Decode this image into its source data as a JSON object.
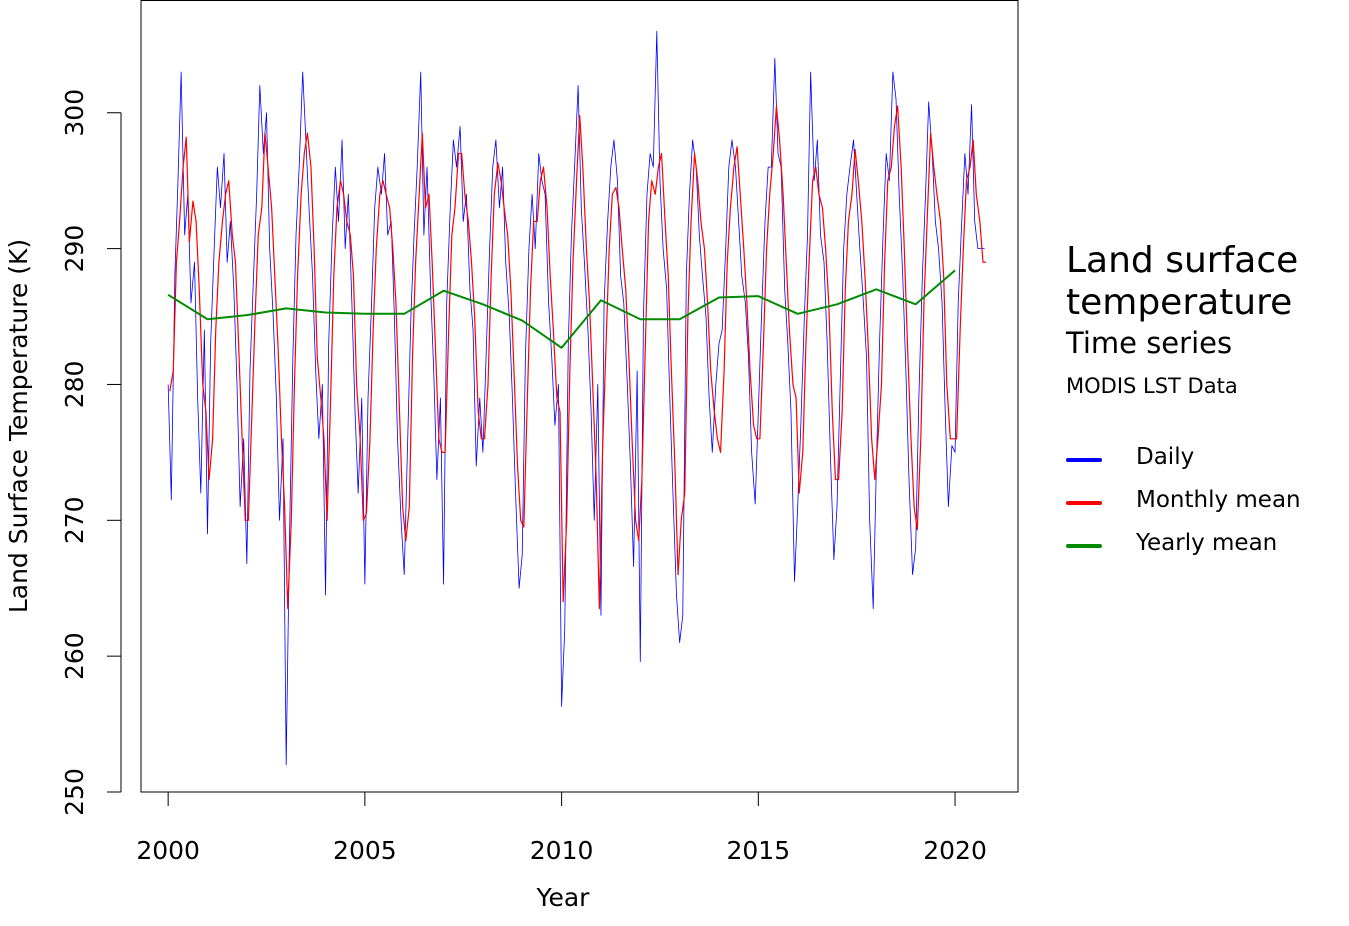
{
  "chart_data": {
    "type": "line",
    "x_label": "Year",
    "y_label": "Land Surface Temperature (K)",
    "legend_title": "Land surface temperature",
    "legend_subtitle": "Time series",
    "legend_note": "MODIS LST Data",
    "xlim": [
      1999.31,
      2021.6
    ],
    "ylim": [
      250,
      308.3
    ],
    "xticks": [
      2000,
      2005,
      2010,
      2015,
      2020
    ],
    "yticks": [
      250,
      260,
      270,
      280,
      290,
      300
    ],
    "series": [
      {
        "name": "Daily",
        "color": "#0000ff",
        "width": 0.8,
        "x": [
          2000.0,
          2000.08,
          2000.17,
          2000.25,
          2000.33,
          2000.42,
          2000.5,
          2000.58,
          2000.67,
          2000.75,
          2000.83,
          2000.92,
          2001.0,
          2001.08,
          2001.17,
          2001.25,
          2001.33,
          2001.42,
          2001.5,
          2001.58,
          2001.67,
          2001.75,
          2001.83,
          2001.92,
          2002.0,
          2002.08,
          2002.17,
          2002.25,
          2002.33,
          2002.42,
          2002.5,
          2002.58,
          2002.67,
          2002.75,
          2002.83,
          2002.92,
          2003.0,
          2003.08,
          2003.17,
          2003.25,
          2003.33,
          2003.42,
          2003.5,
          2003.58,
          2003.67,
          2003.75,
          2003.83,
          2003.92,
          2004.0,
          2004.08,
          2004.17,
          2004.25,
          2004.33,
          2004.42,
          2004.5,
          2004.58,
          2004.67,
          2004.75,
          2004.83,
          2004.92,
          2005.0,
          2005.08,
          2005.17,
          2005.25,
          2005.33,
          2005.42,
          2005.5,
          2005.58,
          2005.67,
          2005.75,
          2005.83,
          2005.92,
          2006.0,
          2006.08,
          2006.17,
          2006.25,
          2006.33,
          2006.42,
          2006.5,
          2006.58,
          2006.67,
          2006.75,
          2006.83,
          2006.92,
          2007.0,
          2007.08,
          2007.17,
          2007.25,
          2007.33,
          2007.42,
          2007.5,
          2007.58,
          2007.67,
          2007.75,
          2007.83,
          2007.92,
          2008.0,
          2008.08,
          2008.17,
          2008.25,
          2008.33,
          2008.42,
          2008.5,
          2008.58,
          2008.67,
          2008.75,
          2008.83,
          2008.92,
          2009.0,
          2009.08,
          2009.17,
          2009.25,
          2009.33,
          2009.42,
          2009.5,
          2009.58,
          2009.67,
          2009.75,
          2009.83,
          2009.92,
          2010.0,
          2010.08,
          2010.17,
          2010.25,
          2010.33,
          2010.42,
          2010.5,
          2010.58,
          2010.67,
          2010.75,
          2010.83,
          2010.92,
          2011.0,
          2011.08,
          2011.17,
          2011.25,
          2011.33,
          2011.42,
          2011.5,
          2011.58,
          2011.67,
          2011.75,
          2011.83,
          2011.92,
          2012.0,
          2012.08,
          2012.17,
          2012.25,
          2012.33,
          2012.42,
          2012.5,
          2012.58,
          2012.67,
          2012.75,
          2012.83,
          2012.92,
          2013.0,
          2013.08,
          2013.17,
          2013.25,
          2013.33,
          2013.42,
          2013.5,
          2013.58,
          2013.67,
          2013.75,
          2013.83,
          2013.92,
          2014.0,
          2014.08,
          2014.17,
          2014.25,
          2014.33,
          2014.42,
          2014.5,
          2014.58,
          2014.67,
          2014.75,
          2014.83,
          2014.92,
          2015.0,
          2015.08,
          2015.17,
          2015.25,
          2015.33,
          2015.42,
          2015.5,
          2015.58,
          2015.67,
          2015.75,
          2015.83,
          2015.92,
          2016.0,
          2016.08,
          2016.17,
          2016.25,
          2016.33,
          2016.42,
          2016.5,
          2016.58,
          2016.67,
          2016.75,
          2016.83,
          2016.92,
          2017.0,
          2017.08,
          2017.17,
          2017.25,
          2017.33,
          2017.42,
          2017.5,
          2017.58,
          2017.67,
          2017.75,
          2017.83,
          2017.92,
          2018.0,
          2018.08,
          2018.17,
          2018.25,
          2018.33,
          2018.42,
          2018.5,
          2018.58,
          2018.67,
          2018.75,
          2018.83,
          2018.92,
          2019.0,
          2019.08,
          2019.17,
          2019.25,
          2019.33,
          2019.42,
          2019.5,
          2019.58,
          2019.67,
          2019.75,
          2019.83,
          2019.92,
          2020.0,
          2020.08,
          2020.17,
          2020.25,
          2020.33,
          2020.42,
          2020.5,
          2020.58,
          2020.67,
          2020.75
        ],
        "values": [
          280,
          271.5,
          288,
          295,
          303,
          291,
          294,
          286,
          289,
          279,
          272,
          284,
          269,
          283,
          290,
          296,
          293,
          297,
          289,
          292,
          287,
          280,
          271,
          276,
          266.8,
          281,
          288,
          294,
          302,
          297,
          300,
          290,
          285,
          279,
          270,
          276,
          252,
          268,
          282,
          291,
          296,
          303,
          298,
          293,
          288,
          281,
          276,
          280,
          264.5,
          283,
          291,
          296,
          292,
          298,
          290,
          294,
          286,
          278,
          272,
          279,
          265.3,
          279,
          286,
          293,
          296,
          294,
          297,
          291,
          292,
          285,
          276,
          270,
          266,
          275,
          285,
          291,
          296,
          303,
          291,
          296,
          287,
          281,
          273,
          279,
          265.3,
          286,
          293,
          298,
          296,
          299,
          292,
          294,
          287,
          284,
          274,
          279,
          275,
          282,
          290,
          296,
          298,
          293,
          296,
          289,
          285,
          279,
          272,
          265,
          267.5,
          282,
          290,
          294,
          290,
          297,
          295,
          294,
          286,
          282,
          277,
          280,
          256.3,
          262,
          283,
          291,
          296,
          302,
          293,
          289,
          284,
          278,
          270,
          280,
          263,
          286,
          292,
          296,
          298,
          295,
          288,
          286,
          280,
          274,
          266.6,
          281,
          259.6,
          285,
          294,
          297,
          296,
          306,
          295,
          290,
          287,
          279,
          272,
          264.5,
          261,
          263,
          288,
          294,
          298,
          296,
          291,
          288,
          285,
          279,
          275,
          280,
          283,
          284,
          290,
          296,
          298,
          296,
          292,
          288,
          286,
          282,
          275,
          271.2,
          278,
          285,
          292,
          296,
          296,
          304,
          297,
          296,
          287,
          283,
          278,
          265.5,
          271,
          277,
          285,
          291,
          303,
          295,
          298,
          291,
          289,
          283,
          275,
          267.1,
          271,
          280,
          290,
          294,
          296,
          298,
          294,
          290,
          286,
          282,
          270,
          263.5,
          274,
          283,
          291,
          297,
          295,
          303,
          301,
          294,
          288,
          281,
          273,
          266,
          268,
          279,
          288,
          294,
          300.8,
          297,
          292,
          290,
          286,
          278,
          271,
          275.5,
          275,
          286,
          292,
          297,
          294,
          300.6,
          292,
          290,
          290,
          290
        ]
      },
      {
        "name": "Monthly mean",
        "color": "#ff0000",
        "width": 1.2,
        "x": [
          2000.04,
          2000.13,
          2000.21,
          2000.29,
          2000.38,
          2000.46,
          2000.54,
          2000.63,
          2000.71,
          2000.79,
          2000.88,
          2000.96,
          2001.04,
          2001.13,
          2001.21,
          2001.29,
          2001.38,
          2001.46,
          2001.54,
          2001.63,
          2001.71,
          2001.79,
          2001.88,
          2001.96,
          2002.04,
          2002.13,
          2002.21,
          2002.29,
          2002.38,
          2002.46,
          2002.54,
          2002.63,
          2002.71,
          2002.79,
          2002.88,
          2002.96,
          2003.04,
          2003.13,
          2003.21,
          2003.29,
          2003.38,
          2003.46,
          2003.54,
          2003.63,
          2003.71,
          2003.79,
          2003.88,
          2003.96,
          2004.04,
          2004.13,
          2004.21,
          2004.29,
          2004.38,
          2004.46,
          2004.54,
          2004.63,
          2004.71,
          2004.79,
          2004.88,
          2004.96,
          2005.04,
          2005.13,
          2005.21,
          2005.29,
          2005.38,
          2005.46,
          2005.54,
          2005.63,
          2005.71,
          2005.79,
          2005.88,
          2005.96,
          2006.04,
          2006.13,
          2006.21,
          2006.29,
          2006.38,
          2006.46,
          2006.54,
          2006.63,
          2006.71,
          2006.79,
          2006.88,
          2006.96,
          2007.04,
          2007.13,
          2007.21,
          2007.29,
          2007.38,
          2007.46,
          2007.54,
          2007.63,
          2007.71,
          2007.79,
          2007.88,
          2007.96,
          2008.04,
          2008.13,
          2008.21,
          2008.29,
          2008.38,
          2008.46,
          2008.54,
          2008.63,
          2008.71,
          2008.79,
          2008.88,
          2008.96,
          2009.04,
          2009.13,
          2009.21,
          2009.29,
          2009.38,
          2009.46,
          2009.54,
          2009.63,
          2009.71,
          2009.79,
          2009.88,
          2009.96,
          2010.04,
          2010.13,
          2010.21,
          2010.29,
          2010.38,
          2010.46,
          2010.54,
          2010.63,
          2010.71,
          2010.79,
          2010.88,
          2010.96,
          2011.04,
          2011.13,
          2011.21,
          2011.29,
          2011.38,
          2011.46,
          2011.54,
          2011.63,
          2011.71,
          2011.79,
          2011.88,
          2011.96,
          2012.04,
          2012.13,
          2012.21,
          2012.29,
          2012.38,
          2012.46,
          2012.54,
          2012.63,
          2012.71,
          2012.79,
          2012.88,
          2012.96,
          2013.04,
          2013.13,
          2013.21,
          2013.29,
          2013.38,
          2013.46,
          2013.54,
          2013.63,
          2013.71,
          2013.79,
          2013.88,
          2013.96,
          2014.04,
          2014.13,
          2014.21,
          2014.29,
          2014.38,
          2014.46,
          2014.54,
          2014.63,
          2014.71,
          2014.79,
          2014.88,
          2014.96,
          2015.04,
          2015.13,
          2015.21,
          2015.29,
          2015.38,
          2015.46,
          2015.54,
          2015.63,
          2015.71,
          2015.79,
          2015.88,
          2015.96,
          2016.04,
          2016.13,
          2016.21,
          2016.29,
          2016.38,
          2016.46,
          2016.54,
          2016.63,
          2016.71,
          2016.79,
          2016.88,
          2016.96,
          2017.04,
          2017.13,
          2017.21,
          2017.29,
          2017.38,
          2017.46,
          2017.54,
          2017.63,
          2017.71,
          2017.79,
          2017.88,
          2017.96,
          2018.04,
          2018.13,
          2018.21,
          2018.29,
          2018.38,
          2018.46,
          2018.54,
          2018.63,
          2018.71,
          2018.79,
          2018.88,
          2018.96,
          2019.04,
          2019.13,
          2019.21,
          2019.29,
          2019.38,
          2019.46,
          2019.54,
          2019.63,
          2019.71,
          2019.79,
          2019.88,
          2019.96,
          2020.04,
          2020.13,
          2020.21,
          2020.29,
          2020.38,
          2020.46,
          2020.54,
          2020.63,
          2020.71,
          2020.79
        ],
        "values": [
          279.5,
          281,
          289,
          292,
          296,
          298.2,
          290.5,
          293.5,
          292,
          287,
          280,
          278,
          273,
          276,
          284,
          289,
          292,
          294,
          295,
          291,
          289,
          283,
          276,
          270,
          270,
          278,
          285,
          291,
          293,
          298.5,
          296,
          293,
          288,
          283,
          276,
          271,
          263.5,
          270,
          280,
          288,
          294,
          297,
          298.5,
          296,
          290,
          282,
          279,
          276,
          270,
          279,
          288,
          293,
          295,
          294,
          292,
          291,
          288,
          280,
          276,
          270,
          270.5,
          276,
          284,
          290,
          294,
          295,
          294,
          293,
          290,
          286,
          278,
          271,
          268.5,
          271,
          282,
          289,
          294,
          298.5,
          293,
          294,
          289,
          283,
          276,
          275,
          275,
          284,
          291,
          293,
          297,
          297,
          294,
          292,
          289,
          285,
          278,
          276,
          276,
          280,
          288,
          294,
          296.3,
          295,
          293,
          291,
          287,
          281,
          274,
          270,
          269.5,
          279,
          287,
          292,
          292,
          295,
          296,
          293,
          288,
          284,
          279,
          278,
          264,
          270,
          281,
          289,
          295,
          299.8,
          296,
          290,
          286,
          280,
          273,
          263.5,
          275,
          283,
          290,
          294,
          294.5,
          293,
          290,
          287,
          282,
          276,
          270,
          268.5,
          273,
          283,
          292,
          295,
          294,
          296,
          297,
          292,
          288,
          281,
          274,
          266,
          270,
          272,
          285,
          292,
          297,
          295,
          292,
          290,
          286,
          281,
          278,
          276,
          275,
          281,
          289,
          293,
          296,
          297.5,
          294,
          290,
          286,
          281,
          277,
          276,
          276,
          283,
          290,
          294,
          297,
          300.5,
          298,
          294,
          289,
          284,
          280,
          279,
          272,
          275,
          283,
          289,
          295,
          296,
          294,
          293,
          290,
          286,
          278,
          273,
          273,
          278,
          287,
          292,
          294,
          297.3,
          295,
          292,
          288,
          283,
          276,
          273,
          276,
          280,
          289,
          295,
          296,
          299,
          300.5,
          296,
          290,
          283,
          276,
          271,
          269.3,
          276,
          286,
          292,
          298.5,
          296,
          294,
          292,
          288,
          280,
          276,
          276,
          276,
          284,
          290,
          295,
          296,
          298,
          294,
          292,
          289,
          289
        ]
      },
      {
        "name": "Yearly mean",
        "color": "#008b00",
        "width": 2,
        "x": [
          2000,
          2001,
          2002,
          2003,
          2004,
          2005,
          2006,
          2007,
          2008,
          2009,
          2010,
          2011,
          2012,
          2013,
          2014,
          2015,
          2016,
          2017,
          2018,
          2019,
          2020
        ],
        "values": [
          286.6,
          284.8,
          285.1,
          285.6,
          285.3,
          285.2,
          285.2,
          286.9,
          285.9,
          284.7,
          282.7,
          286.2,
          284.8,
          284.8,
          286.4,
          286.5,
          285.2,
          285.9,
          287.0,
          285.9,
          288.4
        ]
      }
    ]
  }
}
